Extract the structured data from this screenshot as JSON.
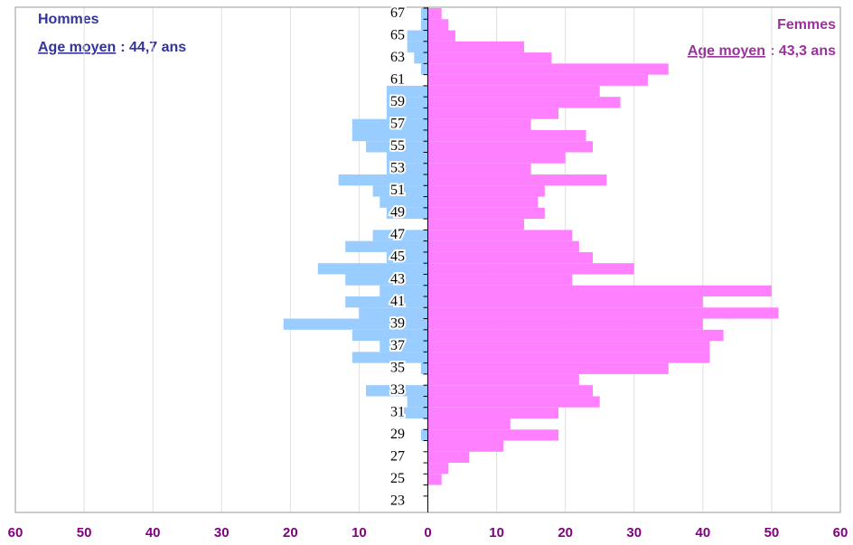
{
  "chart_data": {
    "type": "pyramid",
    "categories": [
      23,
      null,
      25,
      null,
      27,
      null,
      29,
      null,
      31,
      null,
      33,
      null,
      35,
      null,
      37,
      null,
      39,
      null,
      41,
      null,
      43,
      null,
      45,
      null,
      47,
      null,
      49,
      null,
      51,
      null,
      53,
      null,
      55,
      null,
      57,
      null,
      59,
      null,
      61,
      null,
      63,
      null,
      65,
      null,
      67
    ],
    "series": [
      {
        "name": "Hommes",
        "color": "#99ccff",
        "side": "left",
        "values": [
          0,
          0,
          0,
          0,
          0,
          0,
          1,
          0,
          4,
          3,
          9,
          0,
          1,
          11,
          7,
          11,
          21,
          10,
          12,
          7,
          12,
          16,
          6,
          12,
          8,
          0,
          6,
          7,
          8,
          13,
          6,
          6,
          9,
          11,
          11,
          6,
          6,
          6,
          0,
          1,
          2,
          3,
          3,
          1,
          1
        ]
      },
      {
        "name": "Femmes",
        "color": "#ff80ff",
        "side": "right",
        "values": [
          0,
          0,
          2,
          3,
          6,
          11,
          19,
          12,
          19,
          25,
          24,
          22,
          35,
          41,
          41,
          43,
          40,
          51,
          40,
          50,
          21,
          30,
          24,
          22,
          21,
          14,
          17,
          16,
          17,
          26,
          15,
          20,
          24,
          23,
          15,
          19,
          28,
          25,
          32,
          35,
          18,
          14,
          4,
          3,
          2
        ]
      }
    ],
    "annotations": [
      {
        "label": "Age moyen",
        "text": ": 44,7 ans",
        "color": "#333399"
      },
      {
        "label": "Age moyen",
        "text": ": 43,3 ans",
        "color": "#993399"
      }
    ],
    "xlim": [
      -60,
      60
    ],
    "xticks": [
      {
        "value": -60,
        "label": "60"
      },
      {
        "value": -50,
        "label": "50"
      },
      {
        "value": -40,
        "label": "40"
      },
      {
        "value": -30,
        "label": "30"
      },
      {
        "value": -20,
        "label": "20"
      },
      {
        "value": -10,
        "label": "10"
      },
      0,
      10,
      20,
      30,
      40,
      50,
      60
    ],
    "grid": true
  }
}
